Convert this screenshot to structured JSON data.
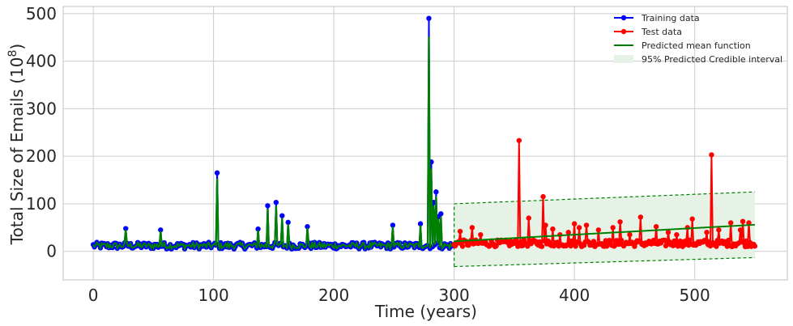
{
  "chart_data": {
    "type": "line",
    "xlabel": "Time (years)",
    "ylabel_main": "Total Size of Emails (10",
    "ylabel_sup": "8",
    "ylabel_close": ")",
    "xlim": [
      -25,
      577
    ],
    "ylim": [
      -60,
      515
    ],
    "xticks": [
      0,
      100,
      200,
      300,
      400,
      500
    ],
    "yticks": [
      0,
      100,
      200,
      300,
      400,
      500
    ],
    "grid": true,
    "legend_position": "top-right",
    "legend": [
      {
        "label": "Training data",
        "color": "#0000ff",
        "kind": "line-marker"
      },
      {
        "label": "Test data",
        "color": "#ff0000",
        "kind": "line-marker"
      },
      {
        "label": "Predicted mean function",
        "color": "#008000",
        "kind": "line"
      },
      {
        "label": "95% Predicted Credible interval",
        "color": "#e5f2e5",
        "kind": "patch"
      }
    ],
    "colors": {
      "training": "#0000ff",
      "test": "#ff0000",
      "mean": "#008000",
      "band": "#e5f2e5",
      "band_edge": "#008000"
    },
    "training_spikes": [
      [
        27,
        48
      ],
      [
        56,
        45
      ],
      [
        103,
        165
      ],
      [
        137,
        47
      ],
      [
        145,
        96
      ],
      [
        152,
        103
      ],
      [
        157,
        75
      ],
      [
        162,
        61
      ],
      [
        178,
        52
      ],
      [
        249,
        55
      ],
      [
        272,
        58
      ],
      [
        279,
        490
      ],
      [
        281,
        188
      ],
      [
        283,
        103
      ],
      [
        285,
        125
      ],
      [
        287,
        73
      ],
      [
        289,
        79
      ]
    ],
    "training_x_range": [
      0,
      300
    ],
    "training_baseline": 12,
    "test_spikes": [
      [
        305,
        42
      ],
      [
        315,
        50
      ],
      [
        322,
        35
      ],
      [
        354,
        233
      ],
      [
        362,
        70
      ],
      [
        374,
        115
      ],
      [
        376,
        55
      ],
      [
        382,
        47
      ],
      [
        388,
        35
      ],
      [
        395,
        40
      ],
      [
        400,
        58
      ],
      [
        404,
        50
      ],
      [
        410,
        55
      ],
      [
        420,
        45
      ],
      [
        432,
        50
      ],
      [
        438,
        62
      ],
      [
        446,
        35
      ],
      [
        455,
        72
      ],
      [
        468,
        52
      ],
      [
        478,
        40
      ],
      [
        485,
        35
      ],
      [
        494,
        50
      ],
      [
        498,
        68
      ],
      [
        510,
        40
      ],
      [
        514,
        203
      ],
      [
        520,
        45
      ],
      [
        530,
        60
      ],
      [
        538,
        45
      ],
      [
        540,
        63
      ],
      [
        545,
        60
      ]
    ],
    "test_x_range": [
      300,
      550
    ],
    "test_baseline": 17,
    "mean_fit": {
      "x": [
        300,
        550
      ],
      "y": [
        21,
        56
      ]
    },
    "credible_upper": {
      "x": [
        300,
        550
      ],
      "y": [
        100,
        125
      ]
    },
    "credible_lower": {
      "x": [
        300,
        550
      ],
      "y": [
        -32,
        -13
      ]
    }
  }
}
